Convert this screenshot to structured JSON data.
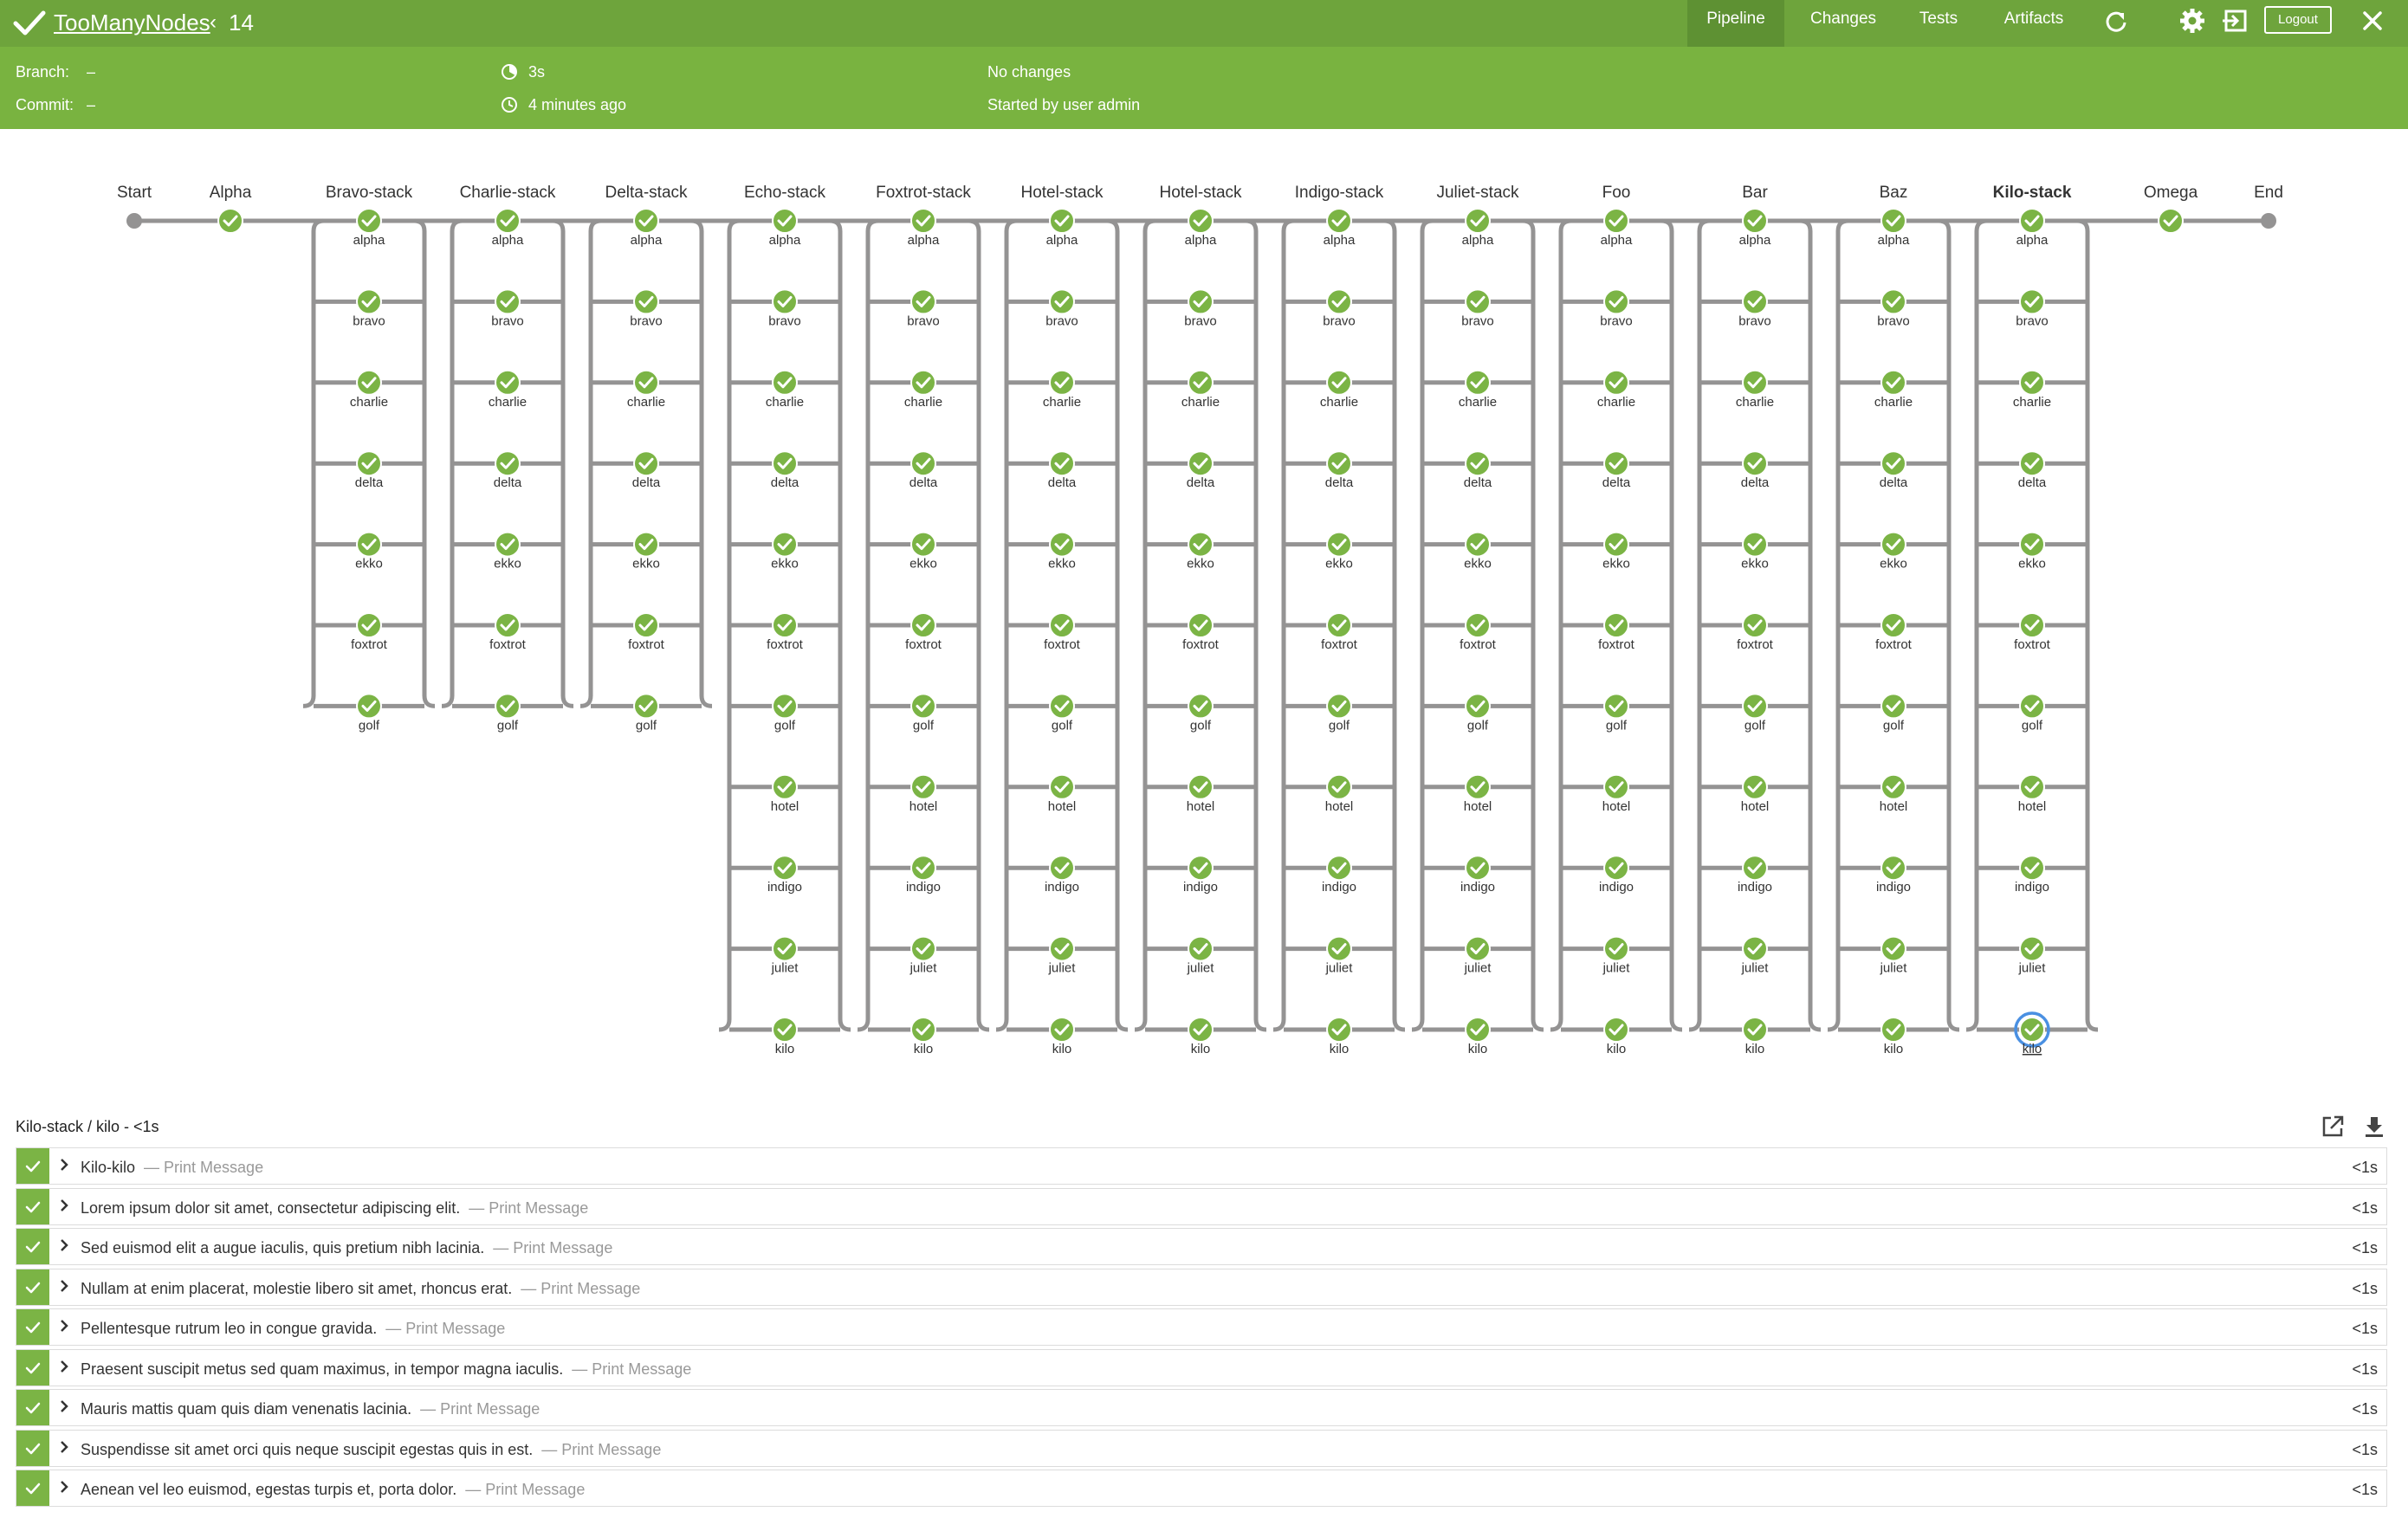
{
  "header": {
    "pipeline_name": "TooManyNodes",
    "back_glyph": "‹",
    "run_number": "14",
    "tabs": [
      "Pipeline",
      "Changes",
      "Tests",
      "Artifacts"
    ],
    "active_tab": "Pipeline",
    "logout_label": "Logout",
    "icons": [
      "check-icon",
      "rerun-icon",
      "settings-icon",
      "exit-classic-icon",
      "close-icon"
    ]
  },
  "info": {
    "branch_label": "Branch:",
    "branch_value": "–",
    "commit_label": "Commit:",
    "commit_value": "–",
    "duration": "3s",
    "started_ago": "4 minutes ago",
    "changes": "No changes",
    "started_by": "Started by user admin"
  },
  "graph": {
    "start_label": "Start",
    "end_label": "End",
    "stages": [
      {
        "name": "Alpha",
        "parallel": false
      },
      {
        "name": "Bravo-stack",
        "parallel": true,
        "branches": [
          "alpha",
          "bravo",
          "charlie",
          "delta",
          "ekko",
          "foxtrot",
          "golf"
        ]
      },
      {
        "name": "Charlie-stack",
        "parallel": true,
        "branches": [
          "alpha",
          "bravo",
          "charlie",
          "delta",
          "ekko",
          "foxtrot",
          "golf"
        ]
      },
      {
        "name": "Delta-stack",
        "parallel": true,
        "branches": [
          "alpha",
          "bravo",
          "charlie",
          "delta",
          "ekko",
          "foxtrot",
          "golf"
        ]
      },
      {
        "name": "Echo-stack",
        "parallel": true,
        "branches": [
          "alpha",
          "bravo",
          "charlie",
          "delta",
          "ekko",
          "foxtrot",
          "golf",
          "hotel",
          "indigo",
          "juliet",
          "kilo"
        ]
      },
      {
        "name": "Foxtrot-stack",
        "parallel": true,
        "branches": [
          "alpha",
          "bravo",
          "charlie",
          "delta",
          "ekko",
          "foxtrot",
          "golf",
          "hotel",
          "indigo",
          "juliet",
          "kilo"
        ]
      },
      {
        "name": "Hotel-stack",
        "parallel": true,
        "branches": [
          "alpha",
          "bravo",
          "charlie",
          "delta",
          "ekko",
          "foxtrot",
          "golf",
          "hotel",
          "indigo",
          "juliet",
          "kilo"
        ]
      },
      {
        "name": "Hotel-stack",
        "parallel": true,
        "branches": [
          "alpha",
          "bravo",
          "charlie",
          "delta",
          "ekko",
          "foxtrot",
          "golf",
          "hotel",
          "indigo",
          "juliet",
          "kilo"
        ]
      },
      {
        "name": "Indigo-stack",
        "parallel": true,
        "branches": [
          "alpha",
          "bravo",
          "charlie",
          "delta",
          "ekko",
          "foxtrot",
          "golf",
          "hotel",
          "indigo",
          "juliet",
          "kilo"
        ]
      },
      {
        "name": "Juliet-stack",
        "parallel": true,
        "branches": [
          "alpha",
          "bravo",
          "charlie",
          "delta",
          "ekko",
          "foxtrot",
          "golf",
          "hotel",
          "indigo",
          "juliet",
          "kilo"
        ]
      },
      {
        "name": "Foo",
        "parallel": true,
        "branches": [
          "alpha",
          "bravo",
          "charlie",
          "delta",
          "ekko",
          "foxtrot",
          "golf",
          "hotel",
          "indigo",
          "juliet",
          "kilo"
        ]
      },
      {
        "name": "Bar",
        "parallel": true,
        "branches": [
          "alpha",
          "bravo",
          "charlie",
          "delta",
          "ekko",
          "foxtrot",
          "golf",
          "hotel",
          "indigo",
          "juliet",
          "kilo"
        ]
      },
      {
        "name": "Baz",
        "parallel": true,
        "branches": [
          "alpha",
          "bravo",
          "charlie",
          "delta",
          "ekko",
          "foxtrot",
          "golf",
          "hotel",
          "indigo",
          "juliet",
          "kilo"
        ]
      },
      {
        "name": "Kilo-stack",
        "parallel": true,
        "selected_branch": "kilo",
        "branches": [
          "alpha",
          "bravo",
          "charlie",
          "delta",
          "ekko",
          "foxtrot",
          "golf",
          "hotel",
          "indigo",
          "juliet",
          "kilo"
        ]
      },
      {
        "name": "Omega",
        "parallel": false
      }
    ],
    "colors": {
      "success": "#7bb445",
      "connector": "#949393",
      "selected_ring": "#4a90e2"
    }
  },
  "log": {
    "title": "Kilo-stack / kilo - <1s",
    "icons": [
      "open-in-new-icon",
      "download-icon"
    ],
    "steps": [
      {
        "message": "Kilo-kilo",
        "type": "— Print Message",
        "duration": "<1s"
      },
      {
        "message": "Lorem ipsum dolor sit amet, consectetur adipiscing elit.",
        "type": "— Print Message",
        "duration": "<1s"
      },
      {
        "message": "Sed euismod elit a augue iaculis, quis pretium nibh lacinia.",
        "type": "— Print Message",
        "duration": "<1s"
      },
      {
        "message": "Nullam at enim placerat, molestie libero sit amet, rhoncus erat.",
        "type": "— Print Message",
        "duration": "<1s"
      },
      {
        "message": "Pellentesque rutrum leo in congue gravida.",
        "type": "— Print Message",
        "duration": "<1s"
      },
      {
        "message": "Praesent suscipit metus sed quam maximus, in tempor magna iaculis.",
        "type": "— Print Message",
        "duration": "<1s"
      },
      {
        "message": "Mauris mattis quam quis diam venenatis lacinia.",
        "type": "— Print Message",
        "duration": "<1s"
      },
      {
        "message": "Suspendisse sit amet orci quis neque suscipit egestas quis in est.",
        "type": "— Print Message",
        "duration": "<1s"
      },
      {
        "message": "Aenean vel leo euismod, egestas turpis et, porta dolor.",
        "type": "— Print Message",
        "duration": "<1s"
      }
    ]
  }
}
